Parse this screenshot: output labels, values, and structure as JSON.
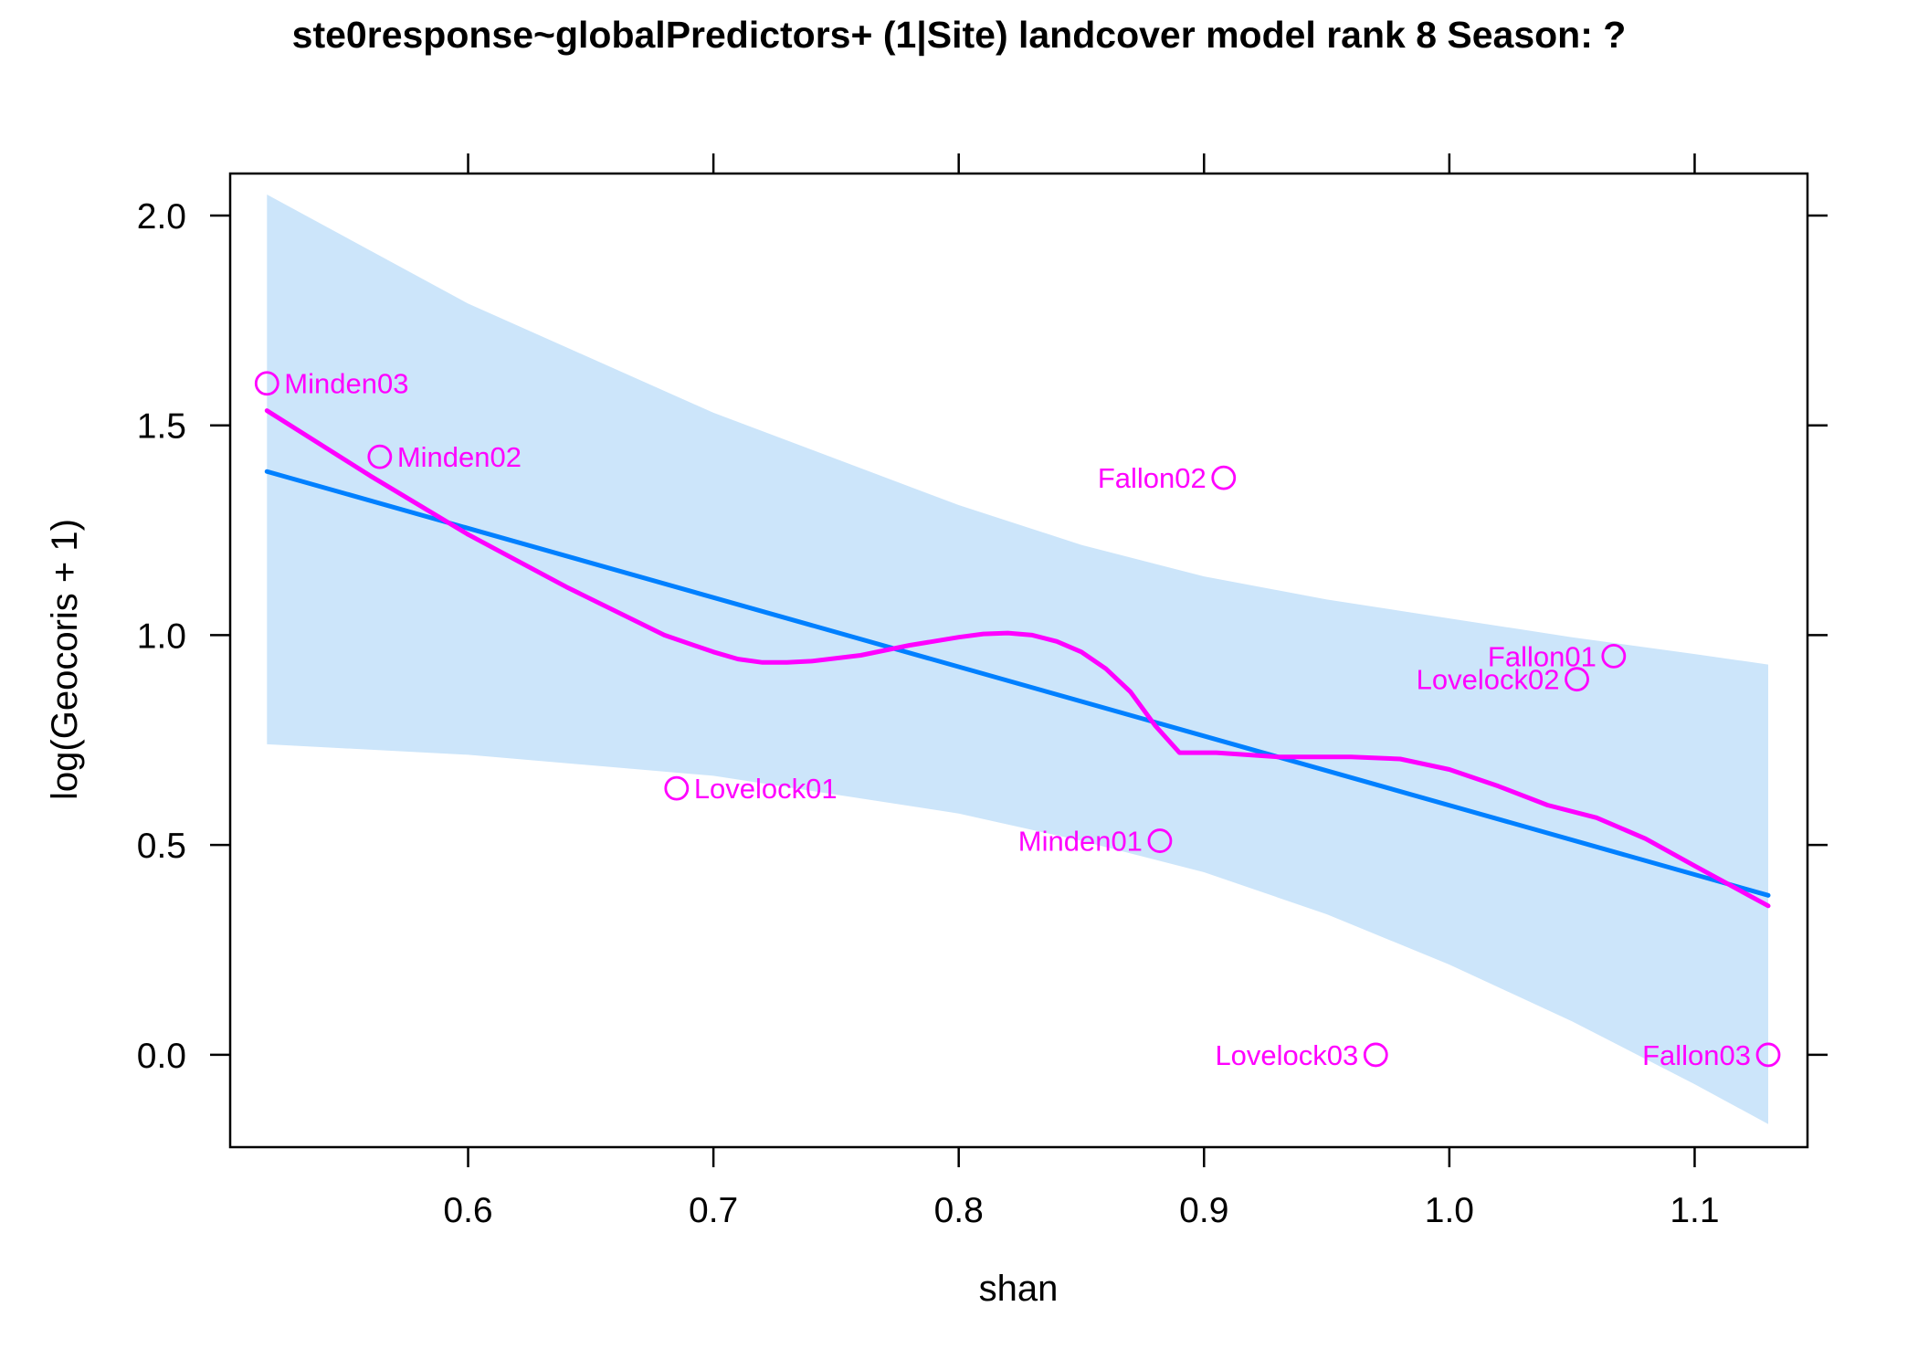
{
  "chart_data": {
    "type": "scatter",
    "title": "ste0response~globalPredictors+ (1|Site) landcover model rank 8 Season: ?",
    "xlabel": "shan",
    "ylabel": "log(Geocoris + 1)",
    "xlim": [
      0.503,
      1.146
    ],
    "ylim": [
      -0.22,
      2.1
    ],
    "x_ticks": [
      0.6,
      0.7,
      0.8,
      0.9,
      1.0,
      1.1
    ],
    "x_tick_labels": [
      "0.6",
      "0.7",
      "0.8",
      "0.9",
      "1.0",
      "1.1"
    ],
    "y_ticks": [
      0.0,
      0.5,
      1.0,
      1.5,
      2.0
    ],
    "y_tick_labels": [
      "0.0",
      "0.5",
      "1.0",
      "1.5",
      "2.0"
    ],
    "grid": false,
    "colors": {
      "points": "#ff00ff",
      "smooth": "#ff00ff",
      "fit": "#0080ff",
      "band": "#cce5fa"
    },
    "points": [
      {
        "label": "Minden03",
        "x": 0.518,
        "y": 1.6,
        "label_side": "right"
      },
      {
        "label": "Minden02",
        "x": 0.564,
        "y": 1.425,
        "label_side": "right"
      },
      {
        "label": "Fallon02",
        "x": 0.908,
        "y": 1.375,
        "label_side": "left"
      },
      {
        "label": "Lovelock01",
        "x": 0.685,
        "y": 0.635,
        "label_side": "right"
      },
      {
        "label": "Minden01",
        "x": 0.882,
        "y": 0.51,
        "label_side": "left"
      },
      {
        "label": "Fallon01",
        "x": 1.067,
        "y": 0.95,
        "label_side": "left"
      },
      {
        "label": "Lovelock02",
        "x": 1.052,
        "y": 0.895,
        "label_side": "left"
      },
      {
        "label": "Lovelock03",
        "x": 0.97,
        "y": 0.0,
        "label_side": "left"
      },
      {
        "label": "Fallon03",
        "x": 1.13,
        "y": 0.0,
        "label_side": "left"
      }
    ],
    "fit_line": {
      "x": [
        0.518,
        1.13
      ],
      "y": [
        1.39,
        0.38
      ]
    },
    "confidence_band": {
      "x": [
        0.518,
        0.6,
        0.7,
        0.8,
        0.85,
        0.9,
        0.95,
        1.0,
        1.05,
        1.1,
        1.13
      ],
      "upper": [
        2.05,
        1.79,
        1.53,
        1.31,
        1.215,
        1.14,
        1.085,
        1.04,
        0.995,
        0.955,
        0.93
      ],
      "lower": [
        0.74,
        0.715,
        0.665,
        0.575,
        0.51,
        0.435,
        0.335,
        0.215,
        0.08,
        -0.07,
        -0.165
      ]
    },
    "smooth_curve": {
      "x": [
        0.518,
        0.56,
        0.6,
        0.64,
        0.68,
        0.7,
        0.71,
        0.72,
        0.73,
        0.74,
        0.76,
        0.78,
        0.8,
        0.81,
        0.82,
        0.83,
        0.84,
        0.85,
        0.86,
        0.87,
        0.88,
        0.89,
        0.9,
        0.905,
        0.93,
        0.96,
        0.98,
        1.0,
        1.02,
        1.04,
        1.06,
        1.08,
        1.1,
        1.13
      ],
      "y": [
        1.535,
        1.38,
        1.24,
        1.115,
        1.0,
        0.96,
        0.943,
        0.935,
        0.935,
        0.938,
        0.952,
        0.976,
        0.995,
        1.003,
        1.005,
        1.0,
        0.985,
        0.96,
        0.92,
        0.865,
        0.785,
        0.72,
        0.72,
        0.72,
        0.71,
        0.71,
        0.705,
        0.68,
        0.64,
        0.595,
        0.565,
        0.515,
        0.45,
        0.355
      ]
    }
  }
}
